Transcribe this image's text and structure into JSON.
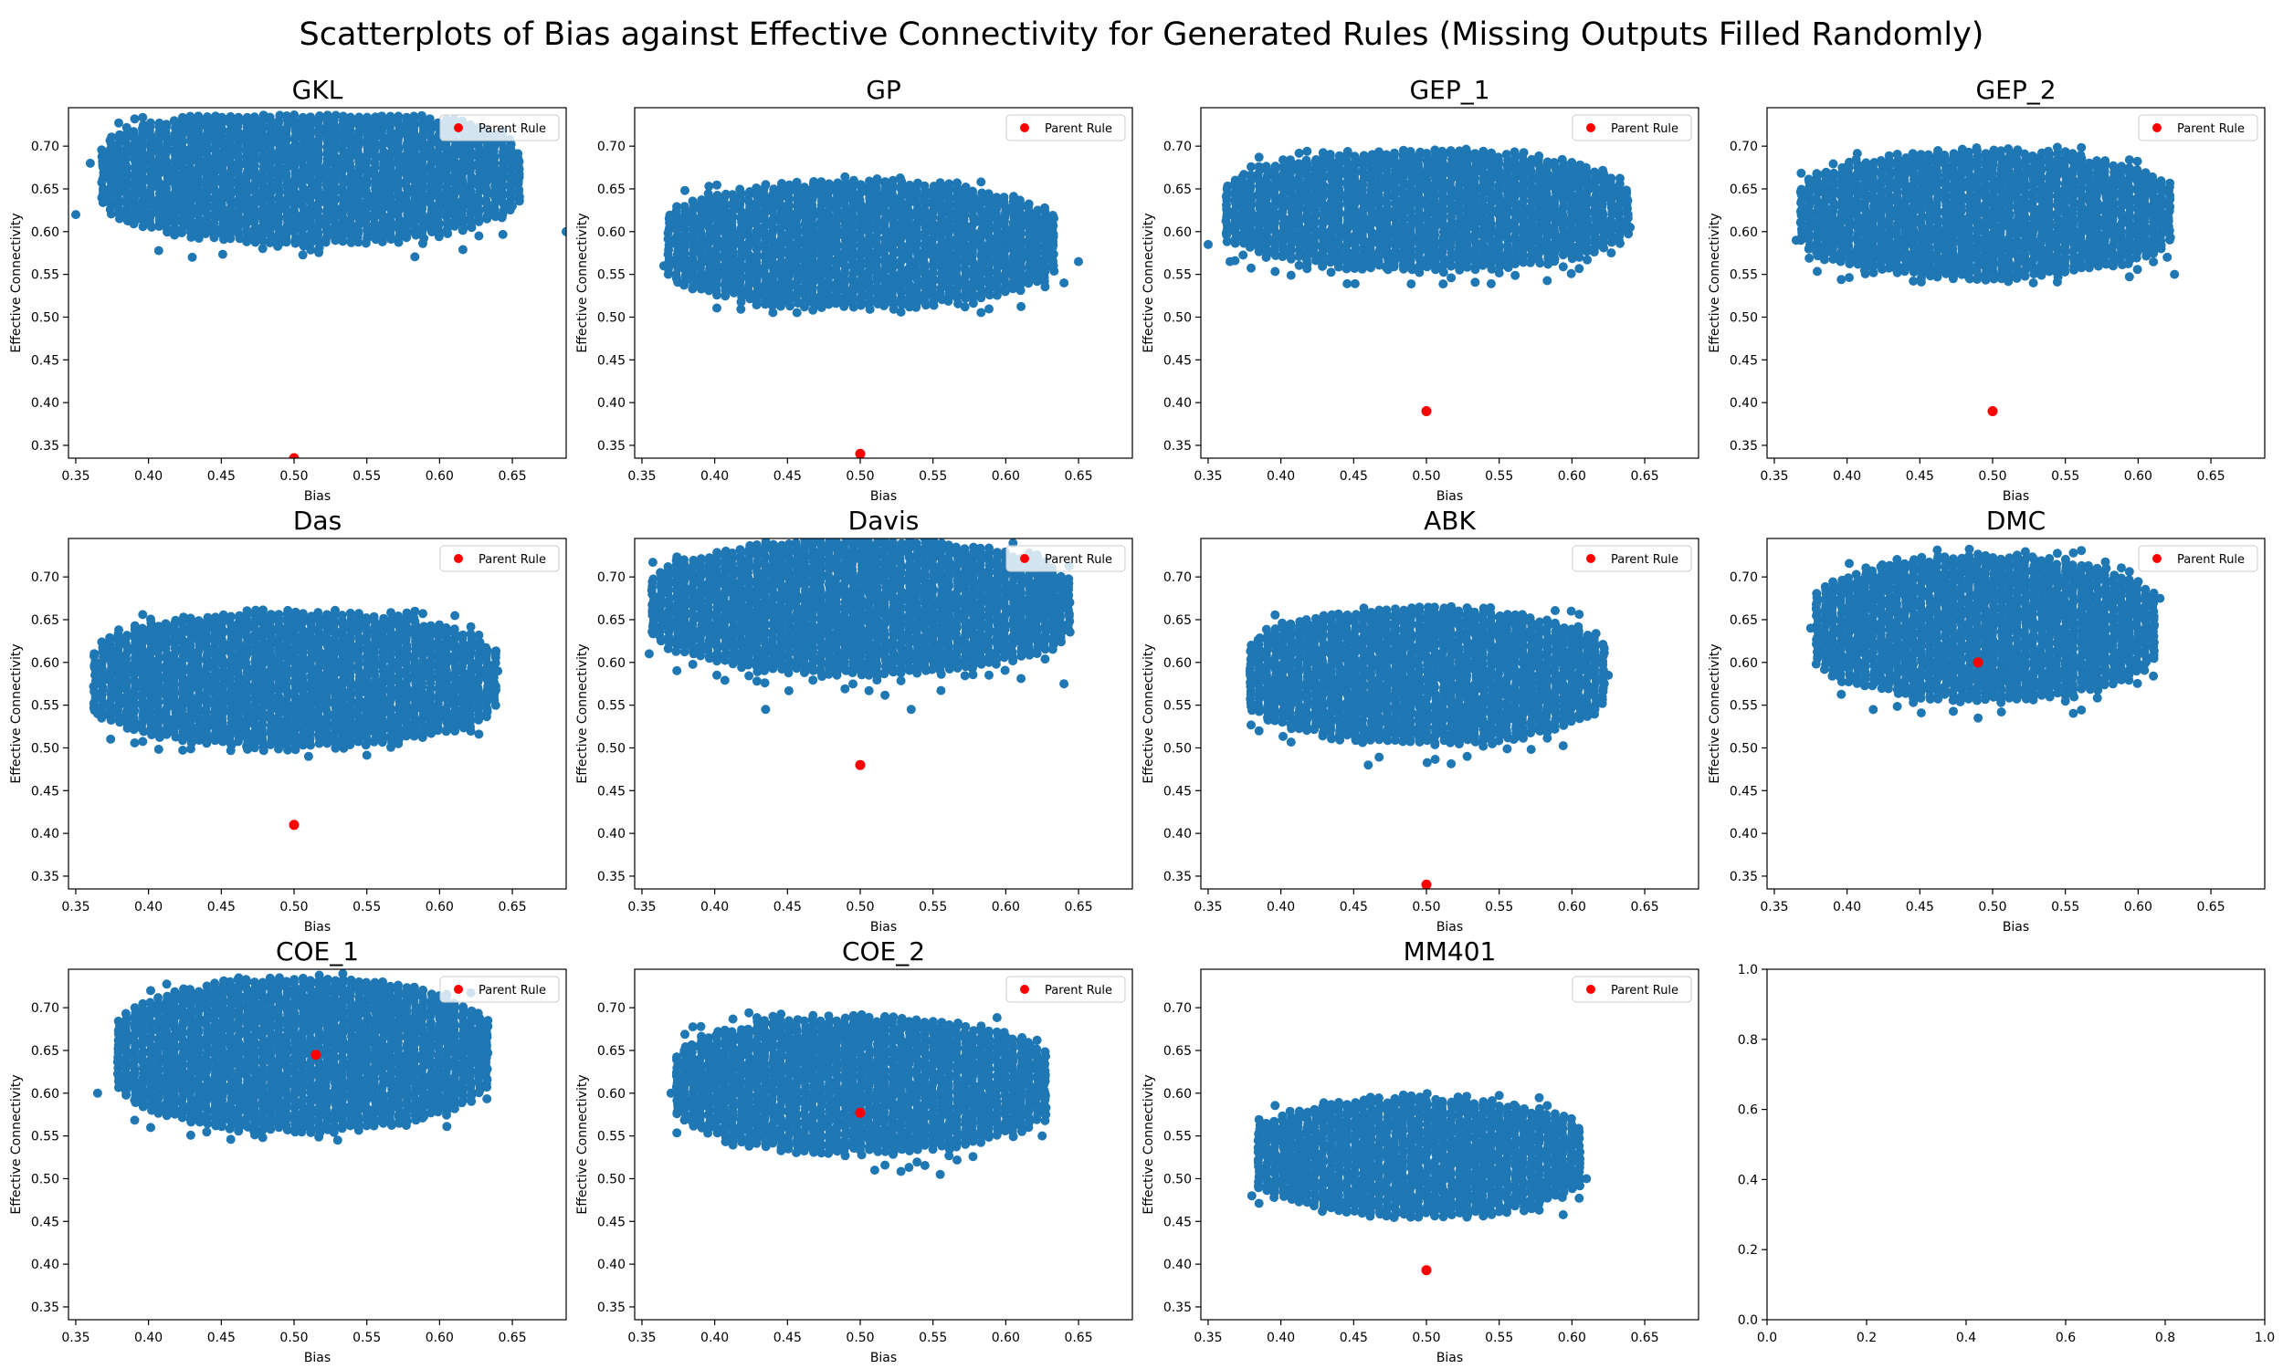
{
  "figure": {
    "title": "Scatterplots of Bias against Effective Connectivity for Generated Rules (Missing Outputs Filled Randomly)"
  },
  "colors": {
    "points": "#1f77b4",
    "parent": "#ff0000",
    "axis": "#000000"
  },
  "common": {
    "xlabel": "Bias",
    "ylabel": "Effective Connectivity",
    "legend_label": "Parent Rule",
    "legend_loc": "upper right",
    "xticks": [
      0.35,
      0.4,
      0.45,
      0.5,
      0.55,
      0.6,
      0.65
    ],
    "yticks": [
      0.35,
      0.4,
      0.45,
      0.5,
      0.55,
      0.6,
      0.65,
      0.7
    ]
  },
  "chart_data": [
    {
      "type": "scatter",
      "title": "GKL",
      "xlim": [
        0.345,
        0.687
      ],
      "ylim": [
        0.335,
        0.745
      ],
      "cloud": {
        "x_center": 0.51,
        "x_half": 0.145,
        "y_center": 0.665,
        "y_half": 0.075,
        "x_range": [
          0.345,
          0.687
        ],
        "y_range": [
          0.57,
          0.735
        ]
      },
      "outliers": [
        [
          0.35,
          0.62
        ],
        [
          0.36,
          0.68
        ],
        [
          0.43,
          0.57
        ],
        [
          0.65,
          0.63
        ],
        [
          0.687,
          0.6
        ]
      ],
      "parent_rule": {
        "x": 0.5,
        "y": 0.335
      }
    },
    {
      "type": "scatter",
      "title": "GP",
      "xlim": [
        0.345,
        0.687
      ],
      "ylim": [
        0.335,
        0.745
      ],
      "cloud": {
        "x_center": 0.5,
        "x_half": 0.135,
        "y_center": 0.585,
        "y_half": 0.07,
        "x_range": [
          0.365,
          0.65
        ],
        "y_range": [
          0.505,
          0.665
        ]
      },
      "outliers": [
        [
          0.365,
          0.56
        ],
        [
          0.64,
          0.54
        ],
        [
          0.65,
          0.565
        ]
      ],
      "parent_rule": {
        "x": 0.5,
        "y": 0.34
      }
    },
    {
      "type": "scatter",
      "title": "GEP_1",
      "xlim": [
        0.345,
        0.687
      ],
      "ylim": [
        0.335,
        0.745
      ],
      "cloud": {
        "x_center": 0.5,
        "x_half": 0.14,
        "y_center": 0.625,
        "y_half": 0.065,
        "x_range": [
          0.35,
          0.64
        ],
        "y_range": [
          0.535,
          0.695
        ]
      },
      "outliers": [
        [
          0.35,
          0.585
        ],
        [
          0.365,
          0.565
        ],
        [
          0.64,
          0.605
        ]
      ],
      "parent_rule": {
        "x": 0.5,
        "y": 0.39
      }
    },
    {
      "type": "scatter",
      "title": "GEP_2",
      "xlim": [
        0.345,
        0.687
      ],
      "ylim": [
        0.335,
        0.745
      ],
      "cloud": {
        "x_center": 0.495,
        "x_half": 0.13,
        "y_center": 0.62,
        "y_half": 0.07,
        "x_range": [
          0.365,
          0.625
        ],
        "y_range": [
          0.54,
          0.7
        ]
      },
      "outliers": [
        [
          0.365,
          0.59
        ],
        [
          0.62,
          0.57
        ],
        [
          0.625,
          0.55
        ]
      ],
      "parent_rule": {
        "x": 0.5,
        "y": 0.39
      }
    },
    {
      "type": "scatter",
      "title": "Das",
      "xlim": [
        0.345,
        0.687
      ],
      "ylim": [
        0.335,
        0.745
      ],
      "cloud": {
        "x_center": 0.5,
        "x_half": 0.14,
        "y_center": 0.58,
        "y_half": 0.075,
        "x_range": [
          0.365,
          0.64
        ],
        "y_range": [
          0.49,
          0.66
        ]
      },
      "outliers": [
        [
          0.365,
          0.54
        ],
        [
          0.64,
          0.59
        ],
        [
          0.51,
          0.49
        ]
      ],
      "parent_rule": {
        "x": 0.5,
        "y": 0.41
      }
    },
    {
      "type": "scatter",
      "title": "Davis",
      "xlim": [
        0.345,
        0.687
      ],
      "ylim": [
        0.335,
        0.745
      ],
      "cloud": {
        "x_center": 0.5,
        "x_half": 0.145,
        "y_center": 0.665,
        "y_half": 0.075,
        "x_range": [
          0.355,
          0.64
        ],
        "y_range": [
          0.545,
          0.745
        ]
      },
      "outliers": [
        [
          0.355,
          0.61
        ],
        [
          0.64,
          0.575
        ],
        [
          0.435,
          0.545
        ],
        [
          0.535,
          0.545
        ]
      ],
      "parent_rule": {
        "x": 0.5,
        "y": 0.48
      }
    },
    {
      "type": "scatter",
      "title": "ABK",
      "xlim": [
        0.345,
        0.687
      ],
      "ylim": [
        0.335,
        0.745
      ],
      "cloud": {
        "x_center": 0.5,
        "x_half": 0.125,
        "y_center": 0.585,
        "y_half": 0.075,
        "x_range": [
          0.38,
          0.625
        ],
        "y_range": [
          0.48,
          0.665
        ]
      },
      "outliers": [
        [
          0.46,
          0.48
        ],
        [
          0.56,
          0.51
        ],
        [
          0.625,
          0.585
        ]
      ],
      "parent_rule": {
        "x": 0.5,
        "y": 0.34
      }
    },
    {
      "type": "scatter",
      "title": "DMC",
      "xlim": [
        0.345,
        0.687
      ],
      "ylim": [
        0.335,
        0.745
      ],
      "cloud": {
        "x_center": 0.495,
        "x_half": 0.12,
        "y_center": 0.64,
        "y_half": 0.08,
        "x_range": [
          0.375,
          0.615
        ],
        "y_range": [
          0.535,
          0.735
        ]
      },
      "outliers": [
        [
          0.375,
          0.64
        ],
        [
          0.615,
          0.675
        ],
        [
          0.49,
          0.535
        ]
      ],
      "parent_rule": {
        "x": 0.49,
        "y": 0.6
      }
    },
    {
      "type": "scatter",
      "title": "COE_1",
      "xlim": [
        0.345,
        0.687
      ],
      "ylim": [
        0.335,
        0.745
      ],
      "cloud": {
        "x_center": 0.505,
        "x_half": 0.13,
        "y_center": 0.645,
        "y_half": 0.085,
        "x_range": [
          0.365,
          0.63
        ],
        "y_range": [
          0.545,
          0.745
        ]
      },
      "outliers": [
        [
          0.365,
          0.6
        ],
        [
          0.63,
          0.66
        ],
        [
          0.53,
          0.545
        ]
      ],
      "parent_rule": {
        "x": 0.515,
        "y": 0.645
      }
    },
    {
      "type": "scatter",
      "title": "COE_2",
      "xlim": [
        0.345,
        0.687
      ],
      "ylim": [
        0.335,
        0.745
      ],
      "cloud": {
        "x_center": 0.5,
        "x_half": 0.13,
        "y_center": 0.61,
        "y_half": 0.075,
        "x_range": [
          0.37,
          0.625
        ],
        "y_range": [
          0.505,
          0.695
        ]
      },
      "outliers": [
        [
          0.37,
          0.6
        ],
        [
          0.625,
          0.55
        ],
        [
          0.51,
          0.51
        ],
        [
          0.555,
          0.505
        ]
      ],
      "parent_rule": {
        "x": 0.5,
        "y": 0.577
      }
    },
    {
      "type": "scatter",
      "title": "MM401",
      "xlim": [
        0.345,
        0.687
      ],
      "ylim": [
        0.335,
        0.745
      ],
      "cloud": {
        "x_center": 0.495,
        "x_half": 0.115,
        "y_center": 0.525,
        "y_half": 0.065,
        "x_range": [
          0.38,
          0.61
        ],
        "y_range": [
          0.455,
          0.6
        ]
      },
      "outliers": [
        [
          0.38,
          0.48
        ],
        [
          0.61,
          0.5
        ]
      ],
      "parent_rule": {
        "x": 0.5,
        "y": 0.393
      }
    },
    {
      "type": "scatter",
      "title": "",
      "empty": true,
      "xlim": [
        0.0,
        1.0
      ],
      "ylim": [
        0.0,
        1.0
      ],
      "xticks": [
        0.0,
        0.2,
        0.4,
        0.6,
        0.8,
        1.0
      ],
      "yticks": [
        0.0,
        0.2,
        0.4,
        0.6,
        0.8,
        1.0
      ]
    }
  ]
}
